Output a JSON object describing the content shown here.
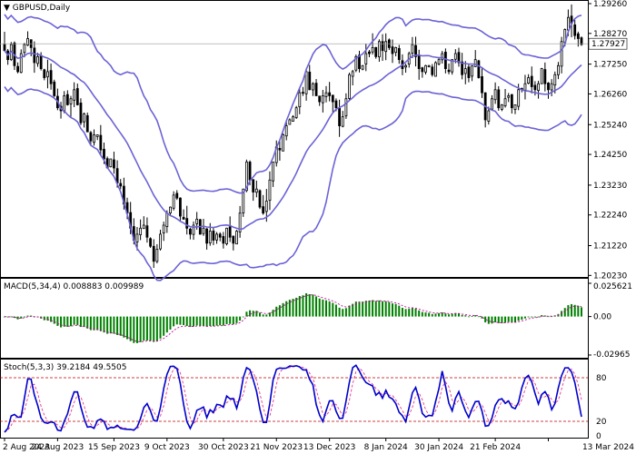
{
  "symbol_title": "GBPUSD,Daily",
  "macd_header": "MACD(5,34,4) 0.008883 0.009989",
  "stoch_header": "Stoch(5,3,3) 39.2184 49.5505",
  "current_price_label": "1.27927",
  "colors": {
    "background": "#ffffff",
    "bull_body": "#ffffff",
    "bear_body": "#000000",
    "bollinger": "#6b63d6",
    "macd_hist": "#008000",
    "macd_signal": "#c7009b",
    "stoch_main": "#0000cc",
    "stoch_signal": "#e23b8a",
    "level_line": "#c00000",
    "price_line": "#9a9a9a"
  },
  "chart_data": [
    {
      "type": "candlestick",
      "name": "GBPUSD Daily",
      "ylim": [
        1.2027,
        1.2926
      ],
      "yticks": [
        1.2926,
        1.2827,
        1.2725,
        1.2626,
        1.2524,
        1.2425,
        1.2323,
        1.2224,
        1.2122,
        1.2023
      ],
      "ytick_labels": [
        "1.29260",
        "1.28270",
        "1.27250",
        "1.26260",
        "1.25240",
        "1.24250",
        "1.23230",
        "1.22240",
        "1.21220",
        "1.20230"
      ],
      "xtick_labels": [
        "2 Aug 2023",
        "24 Aug 2023",
        "15 Sep 2023",
        "9 Oct 2023",
        "30 Oct 2023",
        "21 Nov 2023",
        "13 Dec 2023",
        "8 Jan 2024",
        "30 Jan 2024",
        "21 Feb 2024",
        "13 Mar 2024"
      ],
      "last_close": 1.27927,
      "closes": [
        1.277,
        1.274,
        1.279,
        1.272,
        1.27,
        1.276,
        1.279,
        1.281,
        1.278,
        1.273,
        1.275,
        1.271,
        1.268,
        1.27,
        1.266,
        1.262,
        1.258,
        1.257,
        1.262,
        1.259,
        1.261,
        1.264,
        1.259,
        1.253,
        1.256,
        1.25,
        1.247,
        1.249,
        1.249,
        1.244,
        1.241,
        1.238,
        1.241,
        1.238,
        1.233,
        1.232,
        1.226,
        1.223,
        1.218,
        1.214,
        1.216,
        1.218,
        1.219,
        1.215,
        1.212,
        1.207,
        1.211,
        1.216,
        1.219,
        1.223,
        1.225,
        1.229,
        1.228,
        1.222,
        1.221,
        1.218,
        1.216,
        1.219,
        1.221,
        1.216,
        1.218,
        1.213,
        1.217,
        1.214,
        1.216,
        1.215,
        1.213,
        1.218,
        1.215,
        1.213,
        1.217,
        1.223,
        1.231,
        1.24,
        1.234,
        1.23,
        1.231,
        1.225,
        1.223,
        1.227,
        1.234,
        1.24,
        1.245,
        1.244,
        1.249,
        1.252,
        1.254,
        1.255,
        1.258,
        1.263,
        1.263,
        1.27,
        1.264,
        1.266,
        1.262,
        1.26,
        1.262,
        1.263,
        1.262,
        1.26,
        1.258,
        1.252,
        1.255,
        1.261,
        1.269,
        1.27,
        1.275,
        1.271,
        1.272,
        1.276,
        1.276,
        1.278,
        1.275,
        1.28,
        1.277,
        1.28,
        1.278,
        1.276,
        1.278,
        1.274,
        1.271,
        1.272,
        1.276,
        1.279,
        1.275,
        1.271,
        1.27,
        1.272,
        1.272,
        1.269,
        1.273,
        1.274,
        1.276,
        1.271,
        1.27,
        1.274,
        1.276,
        1.273,
        1.269,
        1.271,
        1.268,
        1.272,
        1.274,
        1.268,
        1.263,
        1.254,
        1.257,
        1.261,
        1.264,
        1.258,
        1.259,
        1.261,
        1.262,
        1.258,
        1.259,
        1.264,
        1.264,
        1.266,
        1.268,
        1.265,
        1.264,
        1.266,
        1.271,
        1.266,
        1.264,
        1.266,
        1.269,
        1.272,
        1.28,
        1.284,
        1.288,
        1.286,
        1.282,
        1.281,
        1.279
      ]
    },
    {
      "type": "bar",
      "name": "MACD(5,34,4)",
      "main_value": 0.008883,
      "signal_value": 0.009989,
      "ylim": [
        -0.02965,
        0.02562
      ],
      "ytick_labels": [
        "0.025621",
        "0.00",
        "-0.02965"
      ],
      "yticks": [
        0.025621,
        0.0,
        -0.02965
      ]
    },
    {
      "type": "line",
      "name": "Stoch(5,3,3)",
      "main_value": 39.2184,
      "signal_value": 49.5505,
      "ylim": [
        0,
        100
      ],
      "levels": [
        20,
        80
      ],
      "ytick_labels": [
        "80",
        "20",
        "0"
      ],
      "yticks": [
        80,
        20,
        0
      ]
    }
  ]
}
